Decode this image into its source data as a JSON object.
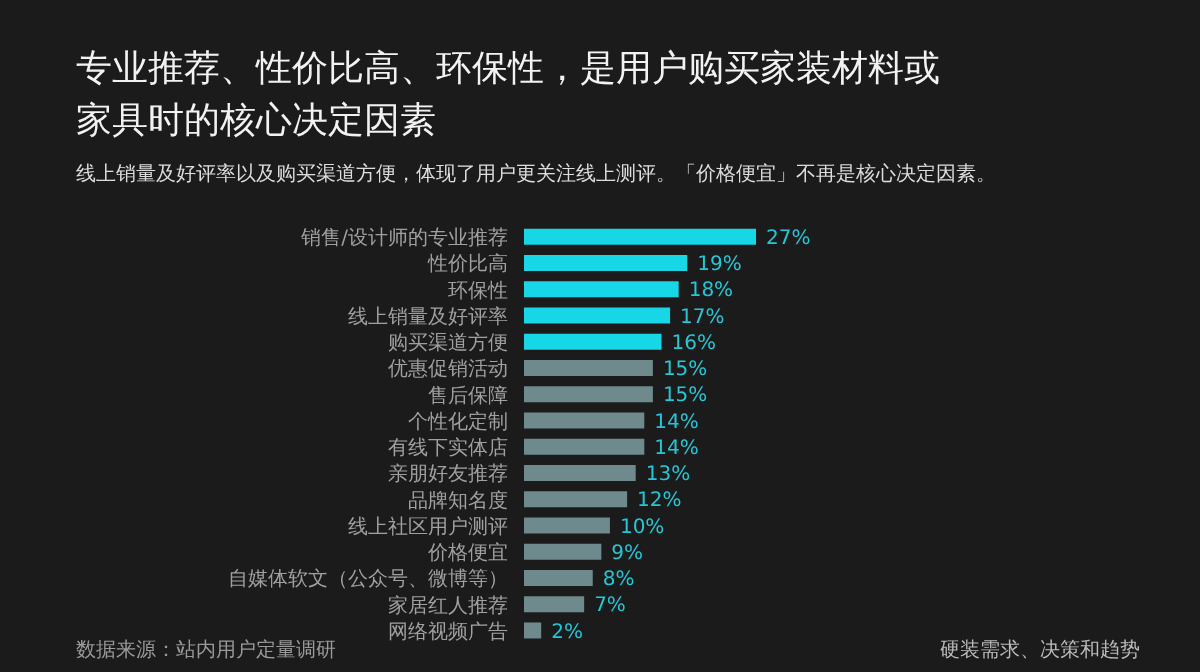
{
  "chart_data": {
    "type": "bar",
    "orientation": "horizontal",
    "title": "专业推荐、性价比高、环保性，是用户购买家装材料或家具时的核心决定因素",
    "subtitle": "线上销量及好评率以及购买渠道方便，体现了用户更关注线上测评。「价格便宜」不再是核心决定因素。",
    "categories": [
      "销售/设计师的专业推荐",
      "性价比高",
      "环保性",
      "线上销量及好评率",
      "购买渠道方便",
      "优惠促销活动",
      "售后保障",
      "个性化定制",
      "有线下实体店",
      "亲朋好友推荐",
      "品牌知名度",
      "线上社区用户测评",
      "价格便宜",
      "自媒体软文（公众号、微博等）",
      "家居红人推荐",
      "网络视频广告"
    ],
    "values": [
      27,
      19,
      18,
      17,
      16,
      15,
      15,
      14,
      14,
      13,
      12,
      10,
      9,
      8,
      7,
      2
    ],
    "colors": [
      "#17d6e6",
      "#17d6e6",
      "#17d6e6",
      "#17d6e6",
      "#17d6e6",
      "#6f8a8c",
      "#6f8a8c",
      "#6f8a8c",
      "#6f8a8c",
      "#6f8a8c",
      "#6f8a8c",
      "#6f8a8c",
      "#6f8a8c",
      "#6f8a8c",
      "#6f8a8c",
      "#6f8a8c"
    ],
    "value_labels": [
      "27%",
      "19%",
      "18%",
      "17%",
      "16%",
      "15%",
      "15%",
      "14%",
      "14%",
      "13%",
      "12%",
      "10%",
      "9%",
      "8%",
      "7%",
      "2%"
    ],
    "annotations": [
      "数据来源：站内用户定量调研",
      "硬装需求、决策和趋势"
    ]
  }
}
